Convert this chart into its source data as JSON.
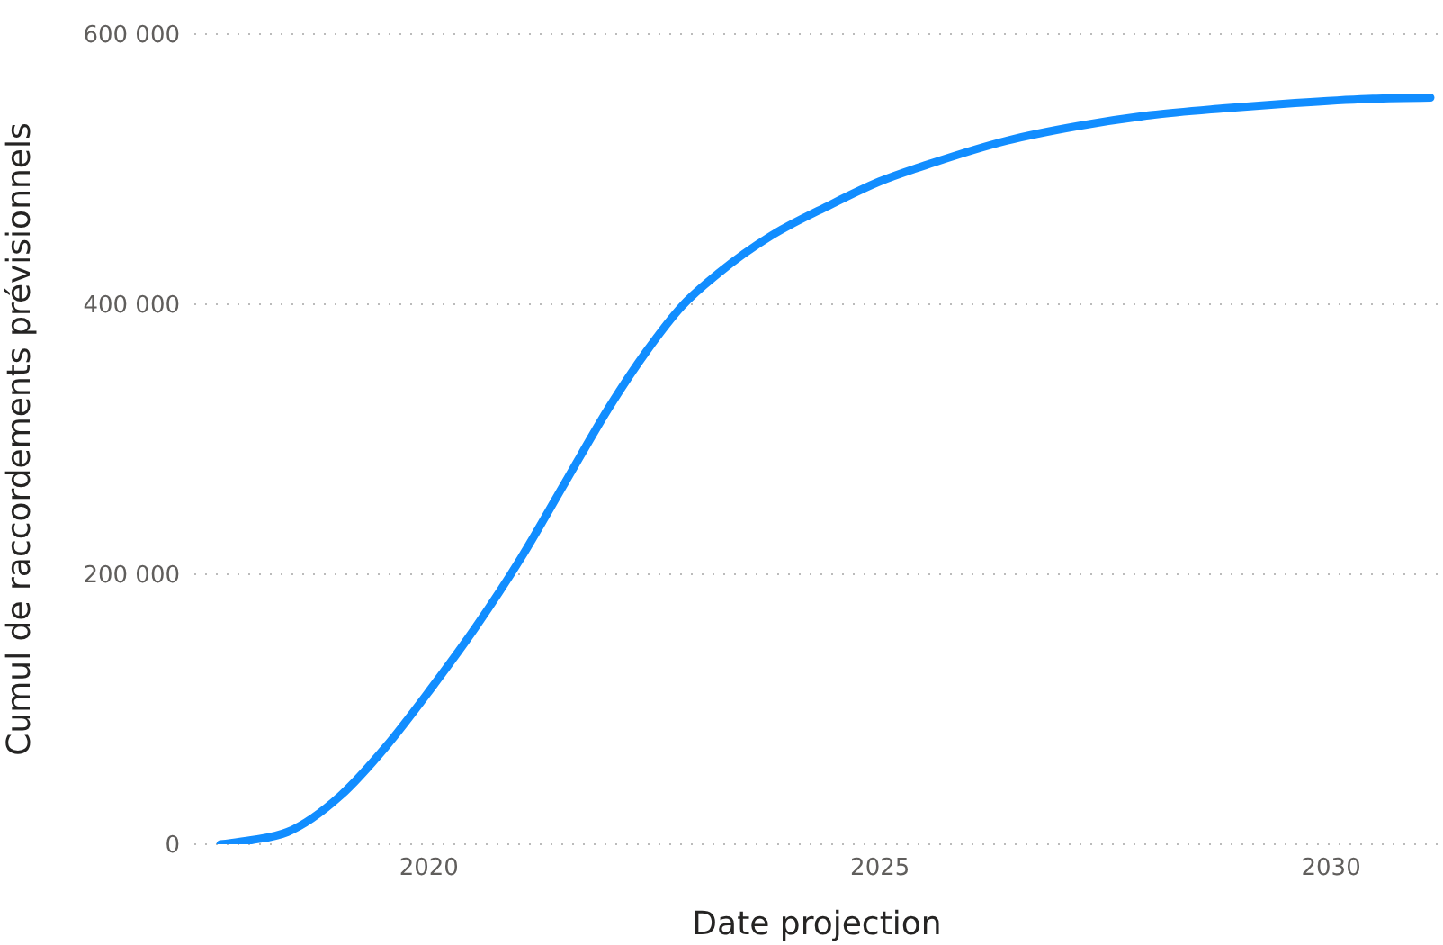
{
  "chart_data": {
    "type": "line",
    "xlabel": "Date projection",
    "ylabel": "Cumul de raccordements prévisionnels",
    "x": [
      2017.69,
      2018.03,
      2018.43,
      2019.02,
      2019.52,
      2020.02,
      2020.52,
      2021.02,
      2021.51,
      2022.01,
      2022.41,
      2022.81,
      2023.21,
      2023.8,
      2024.4,
      2025.0,
      2025.6,
      2026.4,
      2027.2,
      2028.0,
      2028.8,
      2029.6,
      2030.4,
      2031.1
    ],
    "series": [
      {
        "color": "#118dff",
        "values": [
          0,
          3000,
          9000,
          36000,
          72000,
          115000,
          161000,
          212000,
          268000,
          325000,
          365000,
          399000,
          423000,
          451000,
          472000,
          491000,
          505000,
          521000,
          532000,
          540000,
          545000,
          549000,
          552000,
          553000
        ]
      }
    ],
    "xlim": [
      2017.4,
      2031.2
    ],
    "xticks": [
      2020,
      2025,
      2030
    ],
    "ylim": [
      0,
      600000
    ],
    "yticks": [
      {
        "value": 0,
        "label": "0"
      },
      {
        "value": 200000,
        "label": "200 000"
      },
      {
        "value": 400000,
        "label": "400 000"
      },
      {
        "value": 600000,
        "label": "600 000"
      }
    ],
    "grid": "y",
    "legend": false,
    "marker": "none",
    "line_style": "solid"
  }
}
